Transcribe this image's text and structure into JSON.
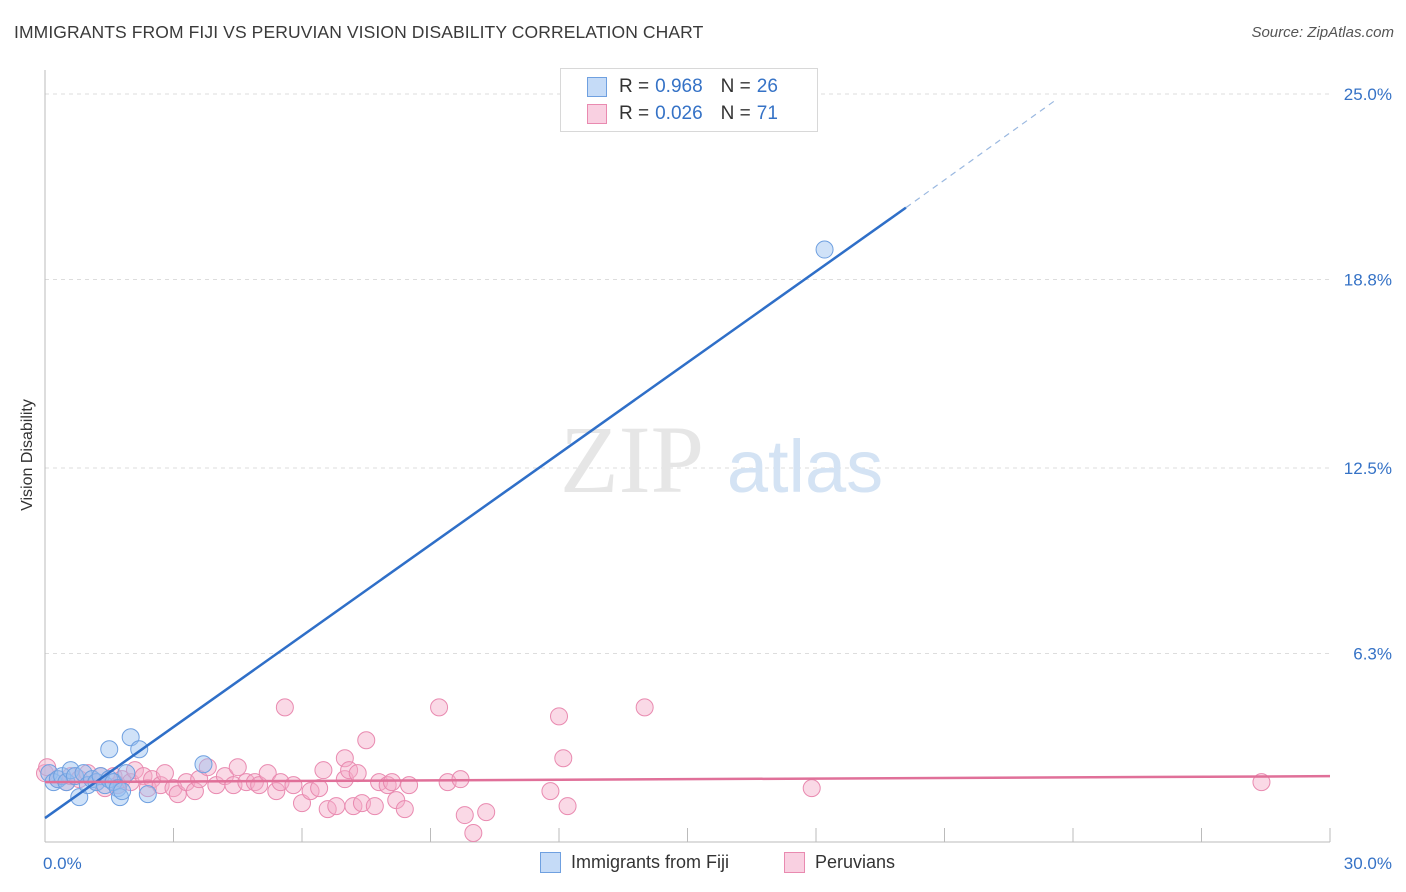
{
  "title": "IMMIGRANTS FROM FIJI VS PERUVIAN VISION DISABILITY CORRELATION CHART",
  "source": "Source: ZipAtlas.com",
  "watermark": {
    "zip": "ZIP",
    "atlas": "atlas"
  },
  "colors": {
    "fiji": "#6fa0e0",
    "fiji_fill": "rgba(150,190,240,0.45)",
    "fiji_line": "#2f6fc8",
    "peru": "#e98ab0",
    "peru_fill": "rgba(244,170,200,0.45)",
    "peru_line": "#e07099",
    "grid": "#dddddd",
    "tick_label": "#3572c6"
  },
  "legend": {
    "fiji": {
      "r_label": "R =",
      "r_value": "0.968",
      "n_label": "N =",
      "n_value": "26"
    },
    "peru": {
      "r_label": "R =",
      "r_value": "0.026",
      "n_label": "N =",
      "n_value": "71"
    }
  },
  "chart_data": {
    "type": "scatter",
    "xlabel": "",
    "ylabel": "Vision Disability",
    "xlim": [
      0,
      30
    ],
    "ylim": [
      0,
      25.8
    ],
    "x_tick_labels": [
      {
        "value": 0,
        "label": "0.0%"
      },
      {
        "value": 30,
        "label": "30.0%"
      }
    ],
    "y_tick_labels": [
      {
        "value": 6.3,
        "label": "6.3%"
      },
      {
        "value": 12.5,
        "label": "12.5%"
      },
      {
        "value": 18.8,
        "label": "18.8%"
      },
      {
        "value": 25.0,
        "label": "25.0%"
      }
    ],
    "series": [
      {
        "name": "Immigrants from Fiji",
        "color": "#6fa0e0",
        "points": [
          [
            0.1,
            2.3
          ],
          [
            0.2,
            2.0
          ],
          [
            0.3,
            2.1
          ],
          [
            0.4,
            2.2
          ],
          [
            0.5,
            2.0
          ],
          [
            0.6,
            2.4
          ],
          [
            0.7,
            2.2
          ],
          [
            0.8,
            1.5
          ],
          [
            0.9,
            2.3
          ],
          [
            1.0,
            1.9
          ],
          [
            1.1,
            2.1
          ],
          [
            1.2,
            2.0
          ],
          [
            1.3,
            2.2
          ],
          [
            1.4,
            1.9
          ],
          [
            1.5,
            2.1
          ],
          [
            1.5,
            3.1
          ],
          [
            1.6,
            2.0
          ],
          [
            1.7,
            1.8
          ],
          [
            1.75,
            1.5
          ],
          [
            1.8,
            1.7
          ],
          [
            1.9,
            2.3
          ],
          [
            2.0,
            3.5
          ],
          [
            2.2,
            3.1
          ],
          [
            2.4,
            1.6
          ],
          [
            3.7,
            2.6
          ],
          [
            18.2,
            19.8
          ]
        ],
        "trend": {
          "x0": 0,
          "y0": 0.8,
          "x1": 20.1,
          "y1": 21.2,
          "dash_x1": 23.6,
          "dash_y1": 24.8
        }
      },
      {
        "name": "Peruvians",
        "color": "#e98ab0",
        "points": [
          [
            0.0,
            2.3
          ],
          [
            0.3,
            2.1
          ],
          [
            0.5,
            2.0
          ],
          [
            0.6,
            2.2
          ],
          [
            0.8,
            2.1
          ],
          [
            1.0,
            2.3
          ],
          [
            1.2,
            2.0
          ],
          [
            1.4,
            1.8
          ],
          [
            1.6,
            2.2
          ],
          [
            1.7,
            1.9
          ],
          [
            1.8,
            2.1
          ],
          [
            2.0,
            2.0
          ],
          [
            2.1,
            2.4
          ],
          [
            2.3,
            2.2
          ],
          [
            2.4,
            1.8
          ],
          [
            2.5,
            2.1
          ],
          [
            2.7,
            1.9
          ],
          [
            2.8,
            2.3
          ],
          [
            3.0,
            1.8
          ],
          [
            3.1,
            1.6
          ],
          [
            3.3,
            2.0
          ],
          [
            3.5,
            1.7
          ],
          [
            3.6,
            2.1
          ],
          [
            3.8,
            2.5
          ],
          [
            4.0,
            1.9
          ],
          [
            4.2,
            2.2
          ],
          [
            4.4,
            1.9
          ],
          [
            4.5,
            2.5
          ],
          [
            4.7,
            2.0
          ],
          [
            4.9,
            2.0
          ],
          [
            5.0,
            1.9
          ],
          [
            5.2,
            2.3
          ],
          [
            5.4,
            1.7
          ],
          [
            5.5,
            2.0
          ],
          [
            5.6,
            4.5
          ],
          [
            5.8,
            1.9
          ],
          [
            6.0,
            1.3
          ],
          [
            6.2,
            1.7
          ],
          [
            6.4,
            1.8
          ],
          [
            6.5,
            2.4
          ],
          [
            6.6,
            1.1
          ],
          [
            6.8,
            1.2
          ],
          [
            7.0,
            2.1
          ],
          [
            7.0,
            2.8
          ],
          [
            7.1,
            2.4
          ],
          [
            7.2,
            1.2
          ],
          [
            7.3,
            2.3
          ],
          [
            7.4,
            1.3
          ],
          [
            7.5,
            3.4
          ],
          [
            7.7,
            1.2
          ],
          [
            7.8,
            2.0
          ],
          [
            8.0,
            1.9
          ],
          [
            8.1,
            2.0
          ],
          [
            8.2,
            1.4
          ],
          [
            8.4,
            1.1
          ],
          [
            8.5,
            1.9
          ],
          [
            9.2,
            4.5
          ],
          [
            9.4,
            2.0
          ],
          [
            9.7,
            2.1
          ],
          [
            9.8,
            0.9
          ],
          [
            10.0,
            0.3
          ],
          [
            10.3,
            1.0
          ],
          [
            11.8,
            1.7
          ],
          [
            12.0,
            4.2
          ],
          [
            12.1,
            2.8
          ],
          [
            12.2,
            1.2
          ],
          [
            14.0,
            4.5
          ],
          [
            17.9,
            1.8
          ],
          [
            28.4,
            2.0
          ],
          [
            0.05,
            2.5
          ],
          [
            1.3,
            2.2
          ]
        ],
        "trend": {
          "x0": 0,
          "y0": 2.0,
          "x1": 30,
          "y1": 2.2
        }
      }
    ],
    "grid": true,
    "legend_position": "top-center"
  }
}
